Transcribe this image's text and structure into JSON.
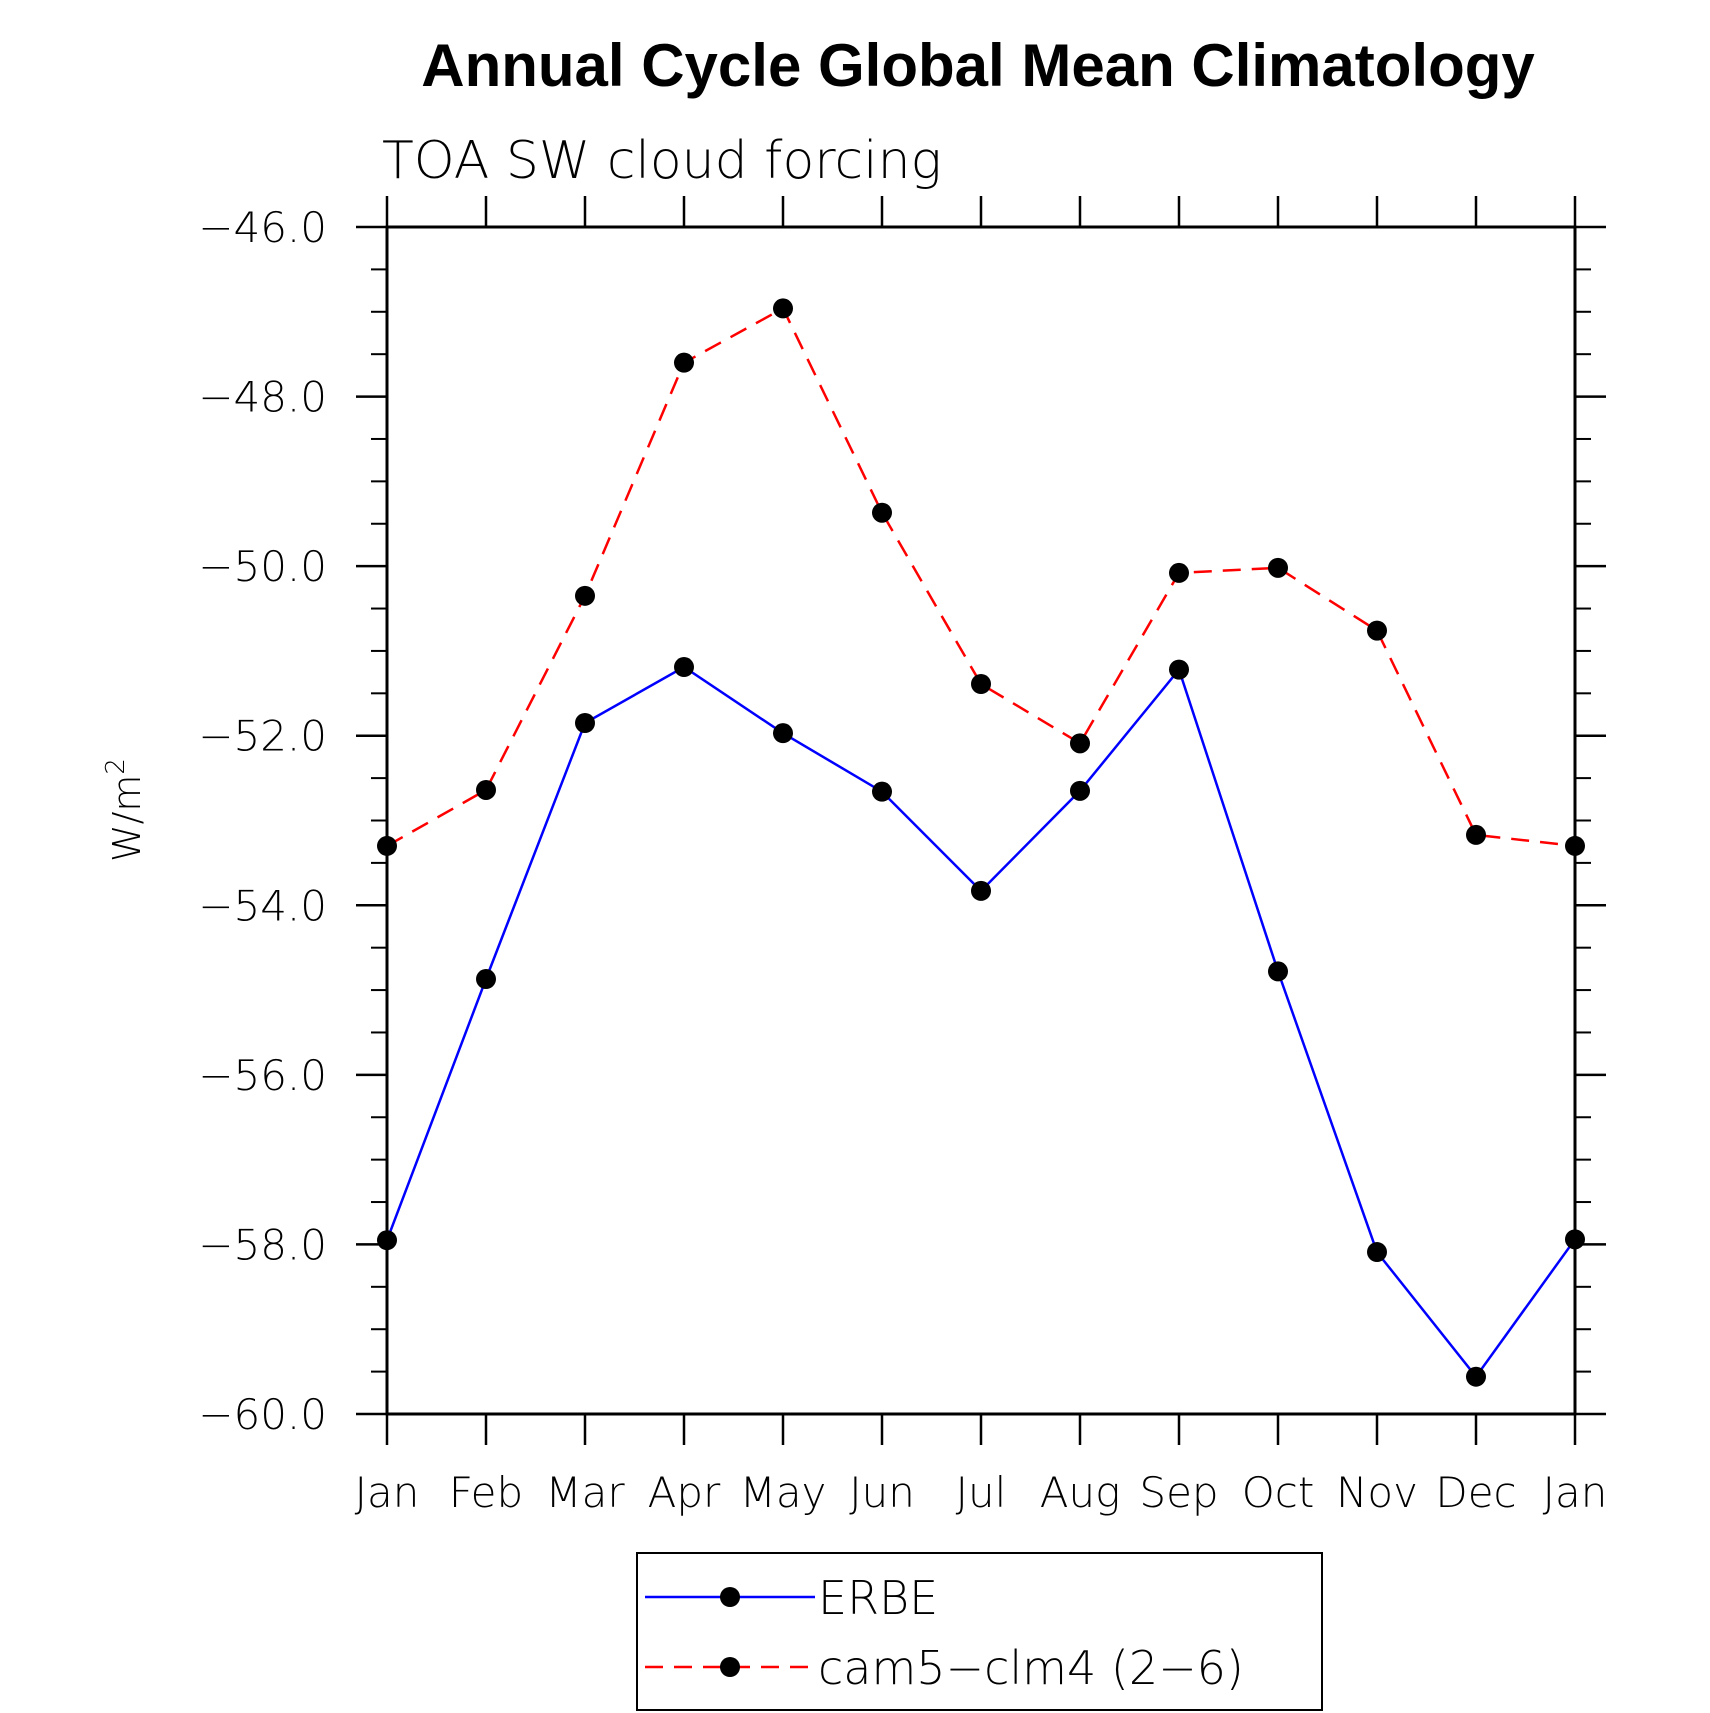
{
  "chart_data": {
    "type": "line",
    "title": "Annual Cycle Global Mean Climatology",
    "subtitle": "TOA SW cloud forcing",
    "ylabel": "W/m",
    "ylabel_superscript": "2",
    "xlabel": "",
    "categories": [
      "Jan",
      "Feb",
      "Mar",
      "Apr",
      "May",
      "Jun",
      "Jul",
      "Aug",
      "Sep",
      "Oct",
      "Nov",
      "Dec",
      "Jan"
    ],
    "ylim": [
      -60.0,
      -46.0
    ],
    "yticks": [
      "-46.0",
      "-48.0",
      "-50.0",
      "-52.0",
      "-54.0",
      "-56.0",
      "-58.0",
      "-60.0"
    ],
    "grid": false,
    "legend_position": "bottom",
    "series": [
      {
        "name": "ERBE",
        "color": "#0000ff",
        "line_style": "solid",
        "marker": "filled-circle",
        "values": [
          -57.95,
          -54.87,
          -51.85,
          -51.19,
          -51.97,
          -52.66,
          -53.83,
          -52.65,
          -51.22,
          -54.78,
          -58.09,
          -59.56,
          -57.94
        ]
      },
      {
        "name": "cam5−clm4 (2−6)",
        "color": "#ff0000",
        "line_style": "dashed",
        "marker": "filled-circle",
        "values": [
          -53.3,
          -52.64,
          -50.35,
          -47.6,
          -46.96,
          -49.37,
          -51.39,
          -52.09,
          -50.08,
          -50.02,
          -50.76,
          -53.17,
          -53.3
        ]
      }
    ]
  }
}
